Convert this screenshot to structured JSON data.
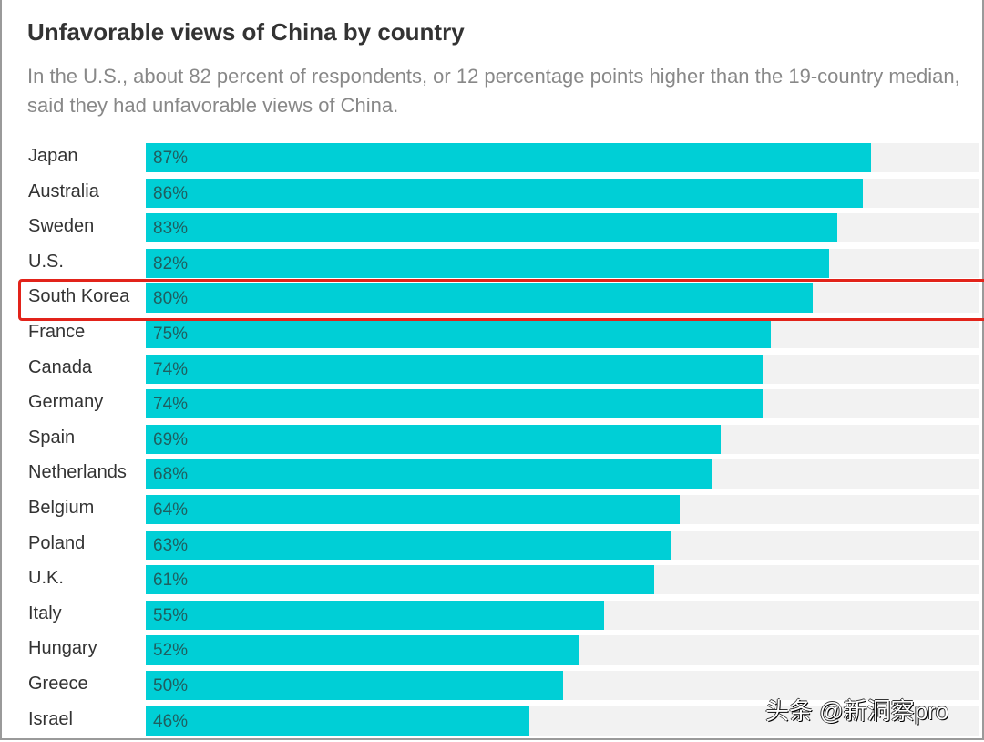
{
  "chart_data": {
    "type": "bar",
    "orientation": "horizontal",
    "title": "Unfavorable views of China by country",
    "subtitle": "In the U.S., about 82 percent of respondents, or 12 percentage points higher than the 19-country median, said they had unfavorable views of China.",
    "categories": [
      "Japan",
      "Australia",
      "Sweden",
      "U.S.",
      "South Korea",
      "France",
      "Canada",
      "Germany",
      "Spain",
      "Netherlands",
      "Belgium",
      "Poland",
      "U.K.",
      "Italy",
      "Hungary",
      "Greece",
      "Israel"
    ],
    "values": [
      87,
      86,
      83,
      82,
      80,
      75,
      74,
      74,
      69,
      68,
      64,
      63,
      61,
      55,
      52,
      50,
      46
    ],
    "value_labels": [
      "87%",
      "86%",
      "83%",
      "82%",
      "80%",
      "75%",
      "74%",
      "74%",
      "69%",
      "68%",
      "64%",
      "63%",
      "61%",
      "55%",
      "52%",
      "50%",
      "46%"
    ],
    "xlim": [
      0,
      100
    ],
    "highlighted_category": "South Korea",
    "colors": {
      "bar": "#00cfd6",
      "track": "#f2f2f2",
      "highlight": "#e2231a"
    }
  },
  "watermark": "头条 @新洞察pro"
}
